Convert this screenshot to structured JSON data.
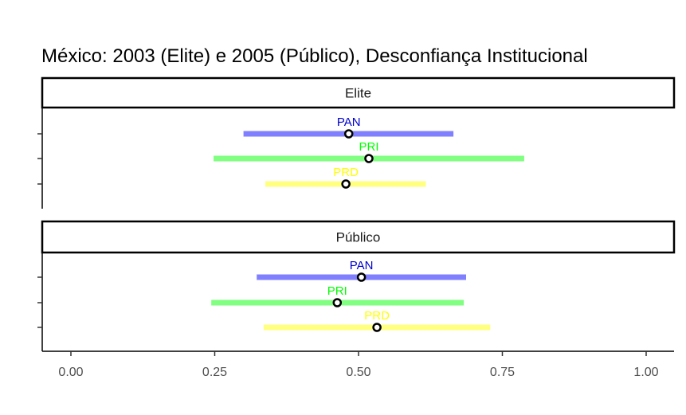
{
  "chart_data": {
    "type": "dot-interval",
    "title": "México: 2003 (Elite) e 2005 (Público), Desconfiança Institucional",
    "xlabel": "",
    "ylabel": "",
    "xlim": [
      0,
      1
    ],
    "x_ticks": [
      "0.00",
      "0.25",
      "0.50",
      "0.75",
      "1.00"
    ],
    "grid": false,
    "panels": [
      {
        "name": "Elite",
        "series": [
          {
            "name": "PAN",
            "color": "#0000cd",
            "bar_color": "#8080ff",
            "estimate": 0.483,
            "low": 0.3,
            "high": 0.665
          },
          {
            "name": "PRI",
            "color": "#00ff00",
            "bar_color": "#80ff80",
            "estimate": 0.518,
            "low": 0.248,
            "high": 0.788
          },
          {
            "name": "PRD",
            "color": "#ffff00",
            "bar_color": "#ffff80",
            "estimate": 0.478,
            "low": 0.338,
            "high": 0.617
          }
        ]
      },
      {
        "name": "Público",
        "series": [
          {
            "name": "PAN",
            "color": "#0000cd",
            "bar_color": "#8080ff",
            "estimate": 0.505,
            "low": 0.323,
            "high": 0.687
          },
          {
            "name": "PRI",
            "color": "#00ff00",
            "bar_color": "#80ff80",
            "estimate": 0.463,
            "low": 0.244,
            "high": 0.683
          },
          {
            "name": "PRD",
            "color": "#ffff00",
            "bar_color": "#ffff80",
            "estimate": 0.532,
            "low": 0.335,
            "high": 0.729
          }
        ]
      }
    ]
  }
}
